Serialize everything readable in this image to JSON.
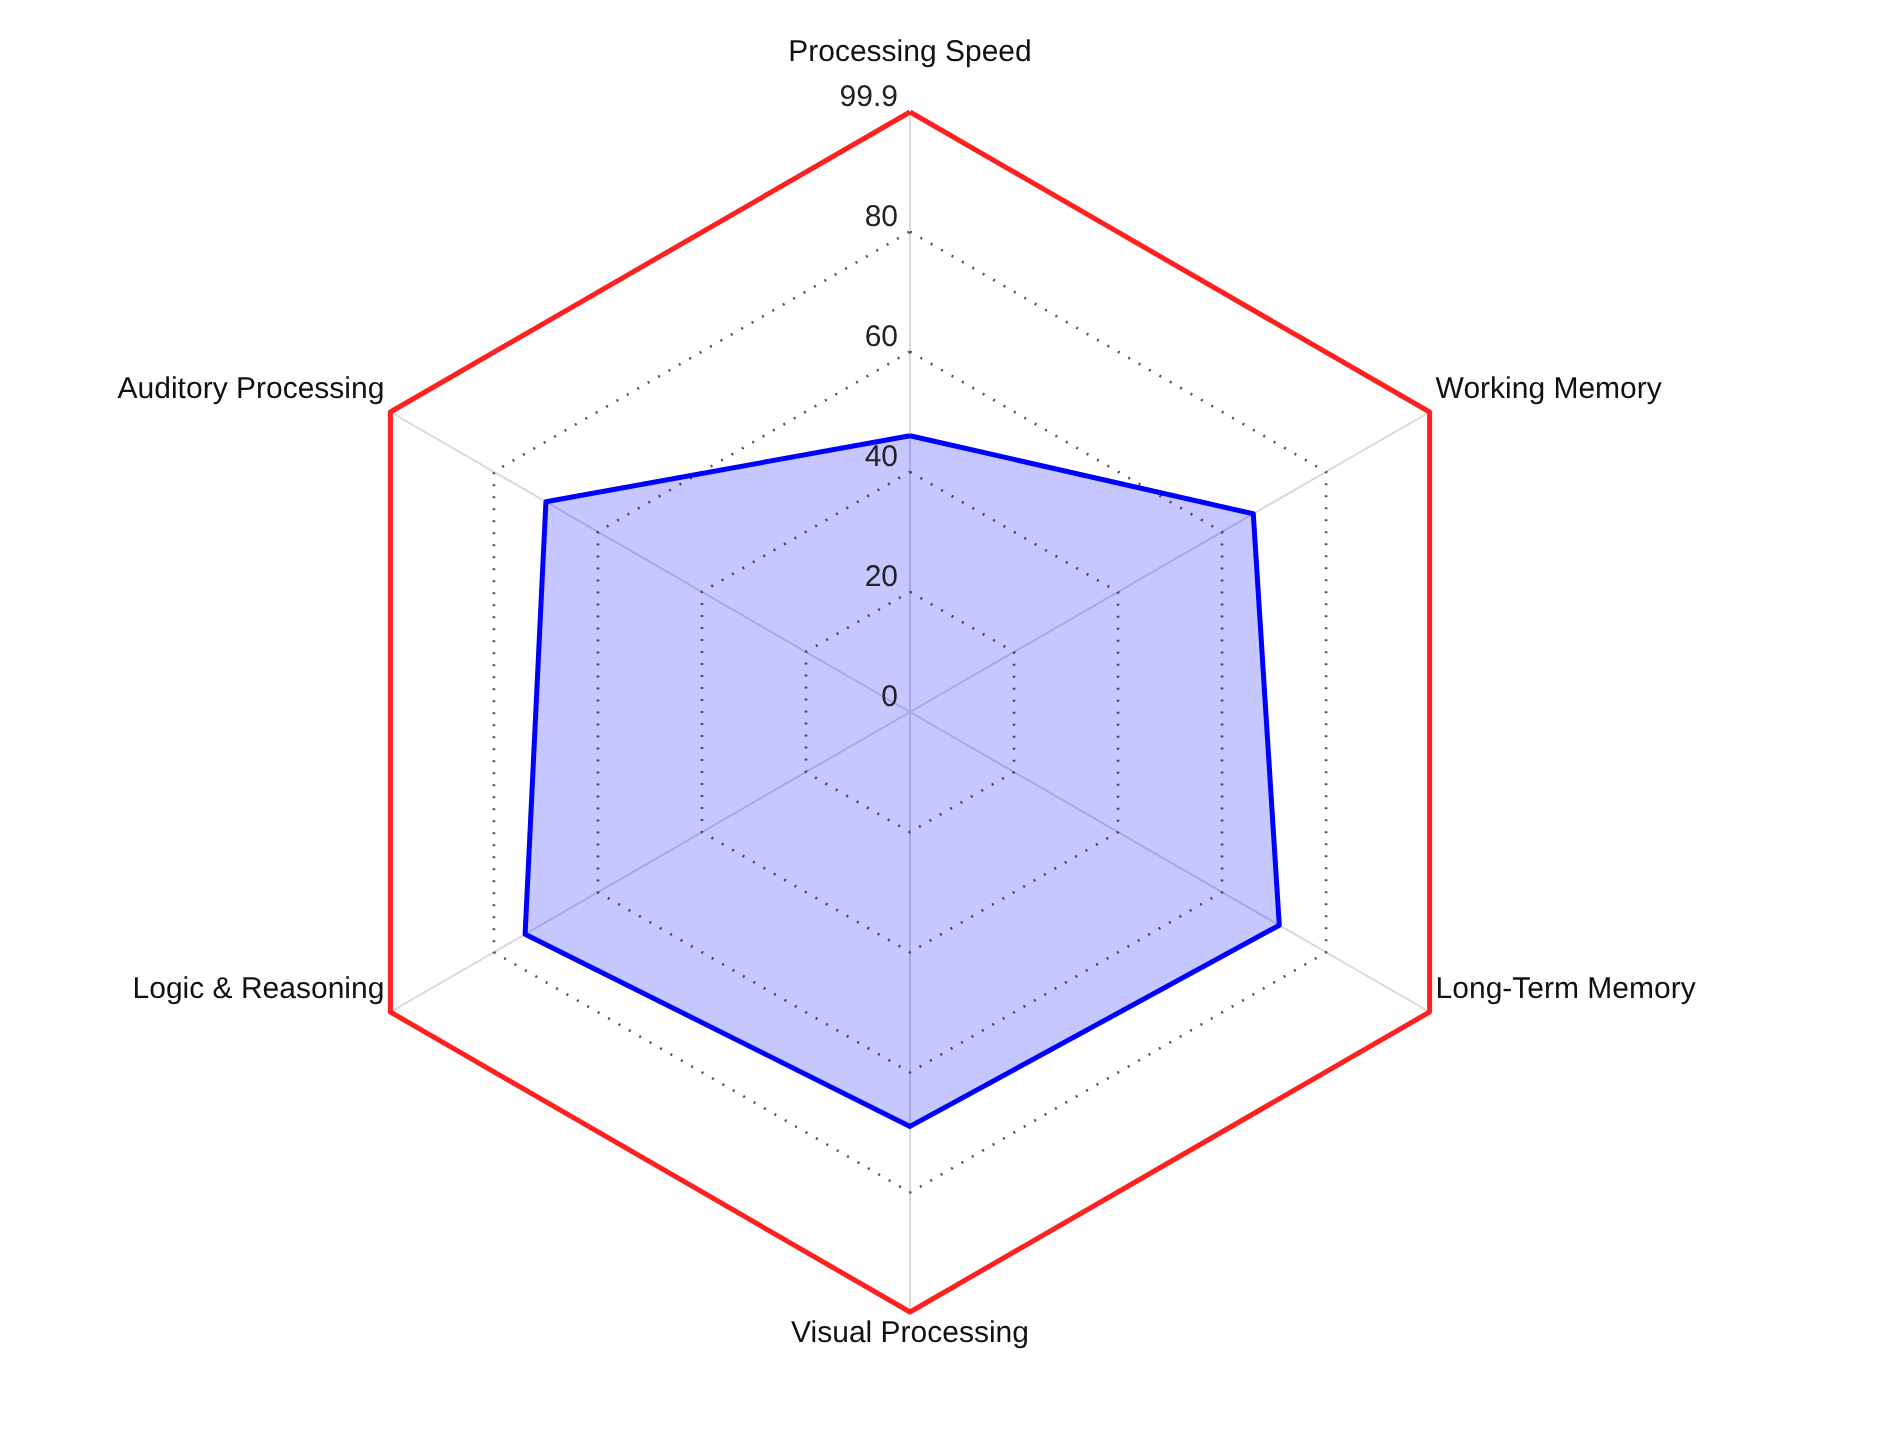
{
  "chart_data": {
    "type": "radar",
    "categories": [
      "Processing Speed",
      "Working Memory",
      "Long-Term Memory",
      "Visual Processing",
      "Logic & Reasoning",
      "Auditory Processing"
    ],
    "series": [
      {
        "color": "#0000ff",
        "values": [
          46,
          66,
          71,
          69,
          74,
          70
        ]
      }
    ],
    "ylim": [
      0,
      99.9
    ],
    "yticks": [
      0,
      20,
      40,
      60,
      80,
      99.9
    ],
    "grid": true
  }
}
